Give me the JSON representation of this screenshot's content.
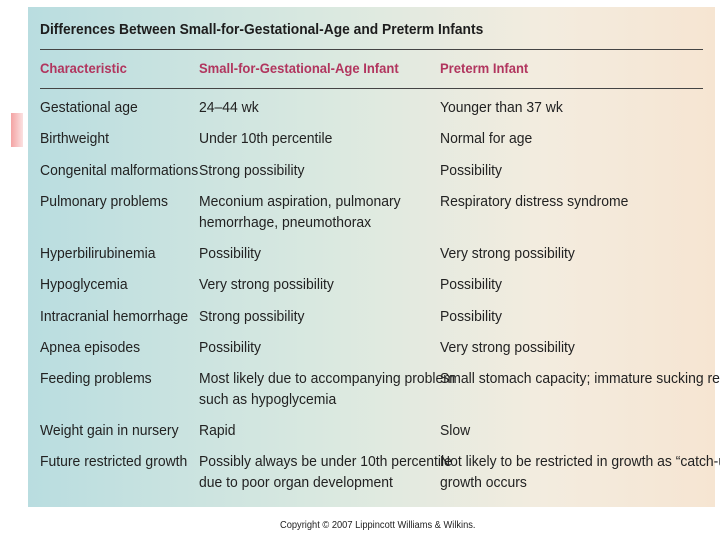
{
  "table": {
    "title": "Differences Between Small-for-Gestational-Age and Preterm Infants",
    "headers": [
      "Characteristic",
      "Small-for-Gestational-Age Infant",
      "Preterm Infant"
    ],
    "rows": [
      [
        "Gestational age",
        "24–44 wk",
        "Younger than 37 wk"
      ],
      [
        "Birthweight",
        "Under 10th percentile",
        "Normal for age"
      ],
      [
        "Congenital malformations",
        "Strong possibility",
        "Possibility"
      ],
      [
        "Pulmonary problems",
        "Meconium aspiration, pulmonary\nhemorrhage, pneumothorax",
        "Respiratory distress syndrome"
      ],
      [
        "Hyperbilirubinemia",
        "Possibility",
        "Very strong possibility"
      ],
      [
        "Hypoglycemia",
        "Very strong possibility",
        "Possibility"
      ],
      [
        "Intracranial hemorrhage",
        "Strong possibility",
        "Possibility"
      ],
      [
        "Apnea episodes",
        "Possibility",
        "Very strong possibility"
      ],
      [
        "Feeding problems",
        "Most likely due to accompanying problem\nsuch as hypoglycemia",
        "Small stomach capacity; immature sucking reflex"
      ],
      [
        "Weight gain in nursery",
        "Rapid",
        "Slow"
      ],
      [
        "Future restricted growth",
        "Possibly always be under 10th percentile\ndue to poor organ development",
        "Not likely to be restricted in growth as “catch-up”\ngrowth occurs"
      ]
    ]
  },
  "caption": "Copyright © 2007 Lippincott Williams & Wilkins.",
  "colors": {
    "header_text": "#b1355e",
    "accent": "#f4a3a3"
  }
}
